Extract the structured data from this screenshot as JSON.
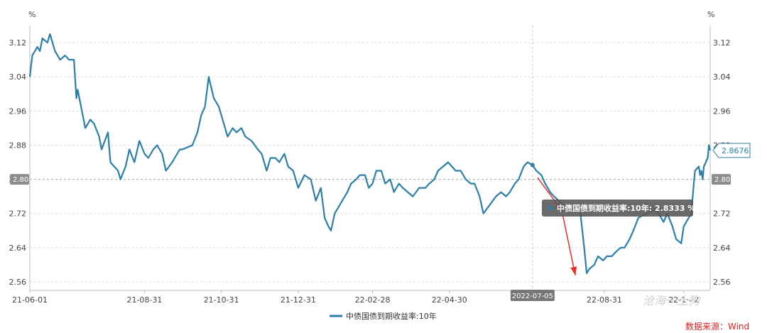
{
  "chart_data": {
    "type": "line",
    "unit_left": "%",
    "unit_right": "%",
    "ylim": [
      2.54,
      3.16
    ],
    "yticks": [
      "3.12",
      "3.04",
      "2.96",
      "2.88",
      "2.80",
      "2.72",
      "2.64",
      "2.56"
    ],
    "yticks_right": [
      "3.12",
      "3.04",
      "2.96",
      "2.88",
      "2.80",
      "2.72",
      "2.64",
      "2.56"
    ],
    "xticks": [
      {
        "label": "21-06-01",
        "date": "2021-06-01"
      },
      {
        "label": "21-08-31",
        "date": "2021-08-31"
      },
      {
        "label": "21-10-31",
        "date": "2021-10-31"
      },
      {
        "label": "21-12-31",
        "date": "2021-12-31"
      },
      {
        "label": "22-02-28",
        "date": "2022-02-28"
      },
      {
        "label": "22-04-30",
        "date": "2022-04-30"
      },
      {
        "label": "22-08-31",
        "date": "2022-08-31"
      },
      {
        "label": "22-1·-·2",
        "date": "2022-11-02"
      }
    ],
    "x_start": "2021-06-01",
    "x_end": "2022-11-23",
    "series": [
      {
        "name": "中债国债到期收益率:10年",
        "color": "#2b7fa8",
        "points": [
          [
            "2021-06-01",
            3.04
          ],
          [
            "2021-06-03",
            3.09
          ],
          [
            "2021-06-07",
            3.11
          ],
          [
            "2021-06-09",
            3.1
          ],
          [
            "2021-06-11",
            3.13
          ],
          [
            "2021-06-15",
            3.12
          ],
          [
            "2021-06-17",
            3.14
          ],
          [
            "2021-06-21",
            3.1
          ],
          [
            "2021-06-25",
            3.08
          ],
          [
            "2021-06-29",
            3.09
          ],
          [
            "2021-07-02",
            3.08
          ],
          [
            "2021-07-06",
            3.08
          ],
          [
            "2021-07-08",
            2.99
          ],
          [
            "2021-07-09",
            3.01
          ],
          [
            "2021-07-13",
            2.95
          ],
          [
            "2021-07-15",
            2.92
          ],
          [
            "2021-07-19",
            2.94
          ],
          [
            "2021-07-22",
            2.93
          ],
          [
            "2021-07-26",
            2.9
          ],
          [
            "2021-07-28",
            2.87
          ],
          [
            "2021-08-02",
            2.91
          ],
          [
            "2021-08-04",
            2.84
          ],
          [
            "2021-08-10",
            2.82
          ],
          [
            "2021-08-12",
            2.8
          ],
          [
            "2021-08-16",
            2.83
          ],
          [
            "2021-08-19",
            2.87
          ],
          [
            "2021-08-23",
            2.84
          ],
          [
            "2021-08-27",
            2.89
          ],
          [
            "2021-08-31",
            2.86
          ],
          [
            "2021-09-03",
            2.85
          ],
          [
            "2021-09-07",
            2.87
          ],
          [
            "2021-09-10",
            2.88
          ],
          [
            "2021-09-14",
            2.86
          ],
          [
            "2021-09-17",
            2.82
          ],
          [
            "2021-09-22",
            2.84
          ],
          [
            "2021-09-24",
            2.85
          ],
          [
            "2021-09-28",
            2.87
          ],
          [
            "2021-09-30",
            2.87
          ],
          [
            "2021-10-08",
            2.88
          ],
          [
            "2021-10-12",
            2.91
          ],
          [
            "2021-10-15",
            2.95
          ],
          [
            "2021-10-18",
            2.97
          ],
          [
            "2021-10-21",
            3.04
          ],
          [
            "2021-10-25",
            2.99
          ],
          [
            "2021-10-27",
            2.98
          ],
          [
            "2021-10-29",
            2.97
          ],
          [
            "2021-11-02",
            2.93
          ],
          [
            "2021-11-05",
            2.9
          ],
          [
            "2021-11-09",
            2.92
          ],
          [
            "2021-11-12",
            2.91
          ],
          [
            "2021-11-16",
            2.92
          ],
          [
            "2021-11-19",
            2.9
          ],
          [
            "2021-11-24",
            2.89
          ],
          [
            "2021-11-29",
            2.87
          ],
          [
            "2021-12-02",
            2.86
          ],
          [
            "2021-12-06",
            2.82
          ],
          [
            "2021-12-09",
            2.85
          ],
          [
            "2021-12-13",
            2.85
          ],
          [
            "2021-12-16",
            2.84
          ],
          [
            "2021-12-20",
            2.86
          ],
          [
            "2021-12-23",
            2.83
          ],
          [
            "2021-12-27",
            2.82
          ],
          [
            "2021-12-31",
            2.78
          ],
          [
            "2022-01-05",
            2.81
          ],
          [
            "2022-01-10",
            2.8
          ],
          [
            "2022-01-14",
            2.75
          ],
          [
            "2022-01-18",
            2.78
          ],
          [
            "2022-01-21",
            2.71
          ],
          [
            "2022-01-24",
            2.69
          ],
          [
            "2022-01-26",
            2.68
          ],
          [
            "2022-01-29",
            2.72
          ],
          [
            "2022-02-08",
            2.77
          ],
          [
            "2022-02-11",
            2.79
          ],
          [
            "2022-02-15",
            2.8
          ],
          [
            "2022-02-18",
            2.81
          ],
          [
            "2022-02-22",
            2.81
          ],
          [
            "2022-02-25",
            2.78
          ],
          [
            "2022-02-28",
            2.79
          ],
          [
            "2022-03-03",
            2.82
          ],
          [
            "2022-03-07",
            2.82
          ],
          [
            "2022-03-10",
            2.79
          ],
          [
            "2022-03-14",
            2.8
          ],
          [
            "2022-03-17",
            2.77
          ],
          [
            "2022-03-21",
            2.79
          ],
          [
            "2022-03-24",
            2.78
          ],
          [
            "2022-03-28",
            2.77
          ],
          [
            "2022-04-01",
            2.76
          ],
          [
            "2022-04-06",
            2.78
          ],
          [
            "2022-04-11",
            2.78
          ],
          [
            "2022-04-14",
            2.79
          ],
          [
            "2022-04-18",
            2.8
          ],
          [
            "2022-04-21",
            2.82
          ],
          [
            "2022-04-25",
            2.83
          ],
          [
            "2022-04-29",
            2.84
          ],
          [
            "2022-05-05",
            2.82
          ],
          [
            "2022-05-09",
            2.82
          ],
          [
            "2022-05-13",
            2.8
          ],
          [
            "2022-05-17",
            2.79
          ],
          [
            "2022-05-20",
            2.79
          ],
          [
            "2022-05-24",
            2.76
          ],
          [
            "2022-05-27",
            2.72
          ],
          [
            "2022-06-01",
            2.74
          ],
          [
            "2022-06-06",
            2.76
          ],
          [
            "2022-06-10",
            2.77
          ],
          [
            "2022-06-14",
            2.76
          ],
          [
            "2022-06-17",
            2.77
          ],
          [
            "2022-06-21",
            2.79
          ],
          [
            "2022-06-24",
            2.8
          ],
          [
            "2022-06-28",
            2.83
          ],
          [
            "2022-07-01",
            2.84
          ],
          [
            "2022-07-05",
            2.8333
          ],
          [
            "2022-07-08",
            2.82
          ],
          [
            "2022-07-12",
            2.81
          ],
          [
            "2022-07-15",
            2.79
          ],
          [
            "2022-07-19",
            2.77
          ],
          [
            "2022-07-22",
            2.76
          ],
          [
            "2022-07-26",
            2.75
          ],
          [
            "2022-07-29",
            2.74
          ],
          [
            "2022-08-02",
            2.73
          ],
          [
            "2022-08-05",
            2.73
          ],
          [
            "2022-08-09",
            2.74
          ],
          [
            "2022-08-12",
            2.72
          ],
          [
            "2022-08-15",
            2.64
          ],
          [
            "2022-08-17",
            2.58
          ],
          [
            "2022-08-19",
            2.59
          ],
          [
            "2022-08-23",
            2.6
          ],
          [
            "2022-08-26",
            2.62
          ],
          [
            "2022-08-30",
            2.61
          ],
          [
            "2022-09-02",
            2.62
          ],
          [
            "2022-09-06",
            2.62
          ],
          [
            "2022-09-09",
            2.63
          ],
          [
            "2022-09-13",
            2.64
          ],
          [
            "2022-09-16",
            2.64
          ],
          [
            "2022-09-20",
            2.66
          ],
          [
            "2022-09-23",
            2.68
          ],
          [
            "2022-09-27",
            2.71
          ],
          [
            "2022-10-10",
            2.73
          ],
          [
            "2022-10-13",
            2.72
          ],
          [
            "2022-10-17",
            2.7
          ],
          [
            "2022-10-20",
            2.72
          ],
          [
            "2022-10-24",
            2.69
          ],
          [
            "2022-10-27",
            2.66
          ],
          [
            "2022-10-31",
            2.65
          ],
          [
            "2022-11-02",
            2.69
          ],
          [
            "2022-11-04",
            2.7
          ],
          [
            "2022-11-08",
            2.72
          ],
          [
            "2022-11-10",
            2.79
          ],
          [
            "2022-11-11",
            2.82
          ],
          [
            "2022-11-14",
            2.83
          ],
          [
            "2022-11-15",
            2.81
          ],
          [
            "2022-11-16",
            2.82
          ],
          [
            "2022-11-17",
            2.8
          ],
          [
            "2022-11-18",
            2.83
          ],
          [
            "2022-11-21",
            2.85
          ],
          [
            "2022-11-22",
            2.88
          ],
          [
            "2022-11-23",
            2.8676
          ]
        ]
      }
    ],
    "reference_level": "2.80",
    "last_value_label": "2.8676",
    "crosshair_date": "2022-07-05",
    "crosshair_label": "2022-07-05",
    "tooltip": {
      "label": "中债国债到期收益率:10年: 2.8333  %",
      "value": 2.8333
    },
    "arrows": [
      {
        "from_date": "2022-07-09",
        "from_value": 2.804,
        "to_date": "2022-07-29",
        "to_value": 2.724
      },
      {
        "from_date": "2022-07-29",
        "from_value": 2.716,
        "to_date": "2022-08-08",
        "to_value": 2.575
      }
    ],
    "legend": {
      "label": "中债国债到期收益率:10年",
      "position": "bottom"
    },
    "source": "数据来源：Wind",
    "watermark": "沧海一土狗"
  }
}
